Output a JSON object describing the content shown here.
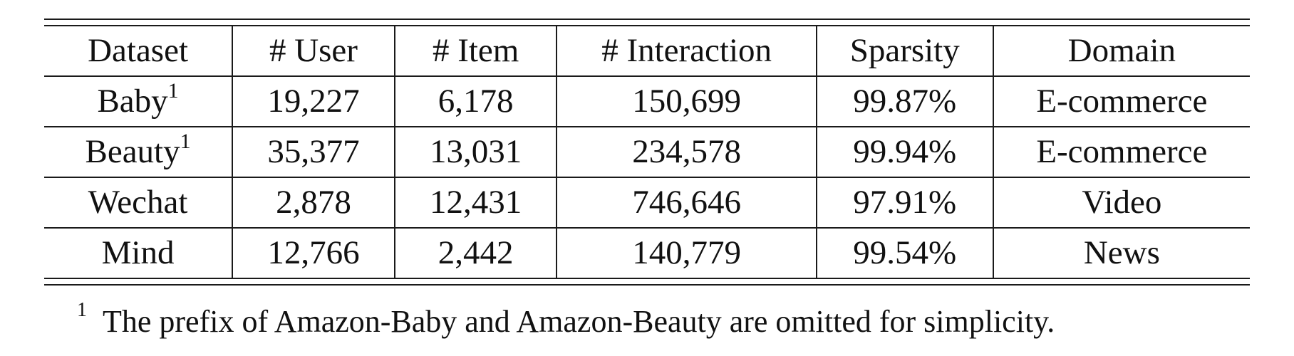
{
  "table": {
    "headers": [
      "Dataset",
      "# User",
      "# Item",
      "# Interaction",
      "Sparsity",
      "Domain"
    ],
    "rows": [
      {
        "dataset": "Baby",
        "footnote": "1",
        "user": "19,227",
        "item": "6,178",
        "interaction": "150,699",
        "sparsity": "99.87%",
        "domain": "E-commerce"
      },
      {
        "dataset": "Beauty",
        "footnote": "1",
        "user": "35,377",
        "item": "13,031",
        "interaction": "234,578",
        "sparsity": "99.94%",
        "domain": "E-commerce"
      },
      {
        "dataset": "Wechat",
        "footnote": "",
        "user": "2,878",
        "item": "12,431",
        "interaction": "746,646",
        "sparsity": "97.91%",
        "domain": "Video"
      },
      {
        "dataset": "Mind",
        "footnote": "",
        "user": "12,766",
        "item": "2,442",
        "interaction": "140,779",
        "sparsity": "99.54%",
        "domain": "News"
      }
    ]
  },
  "footnote": {
    "mark": "1",
    "text": "The prefix of Amazon-Baby and Amazon-Beauty are omitted for simplicity."
  }
}
